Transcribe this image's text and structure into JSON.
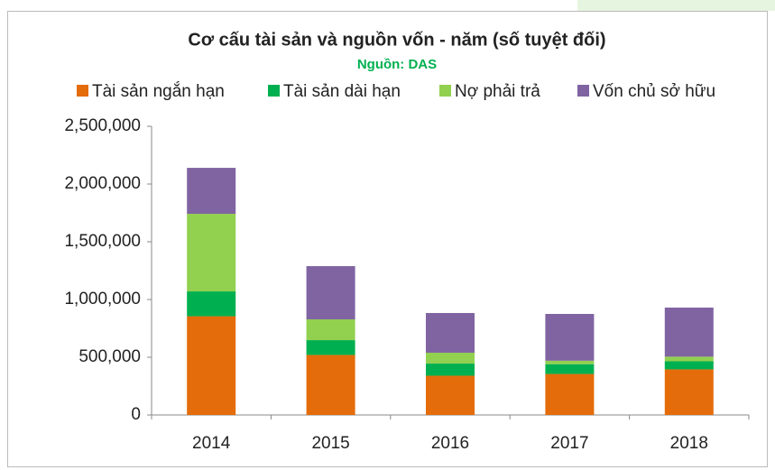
{
  "chart_data": {
    "type": "bar",
    "stacked": true,
    "title": "Cơ cấu tài sản và nguồn vốn - năm (số tuyệt đối)",
    "subtitle": "Nguồn: DAS",
    "categories": [
      "2014",
      "2015",
      "2016",
      "2017",
      "2018"
    ],
    "series": [
      {
        "name": "Tài sản ngắn hạn",
        "color": "#e46c0a",
        "values": [
          855000,
          520000,
          340000,
          355000,
          395000
        ]
      },
      {
        "name": "Tài sản dài hạn",
        "color": "#00b050",
        "values": [
          215000,
          128000,
          105000,
          85000,
          70000
        ]
      },
      {
        "name": "Nợ phải trả",
        "color": "#92d050",
        "values": [
          672000,
          180000,
          94000,
          30000,
          40000
        ]
      },
      {
        "name": "Vốn chủ sở hữu",
        "color": "#8064a2",
        "values": [
          398000,
          461000,
          344000,
          405000,
          425000
        ]
      }
    ],
    "ylim": [
      0,
      2500000
    ],
    "yticks": [
      0,
      {
        "value": 500000,
        "label": "500,000"
      },
      {
        "value": 1000000,
        "label": "1,000,000"
      },
      {
        "value": 1500000,
        "label": "1,500,000"
      },
      {
        "value": 2000000,
        "label": "2,000,000"
      },
      {
        "value": 2500000,
        "label": "2,500,000"
      }
    ],
    "grid": false,
    "legend": "top"
  }
}
